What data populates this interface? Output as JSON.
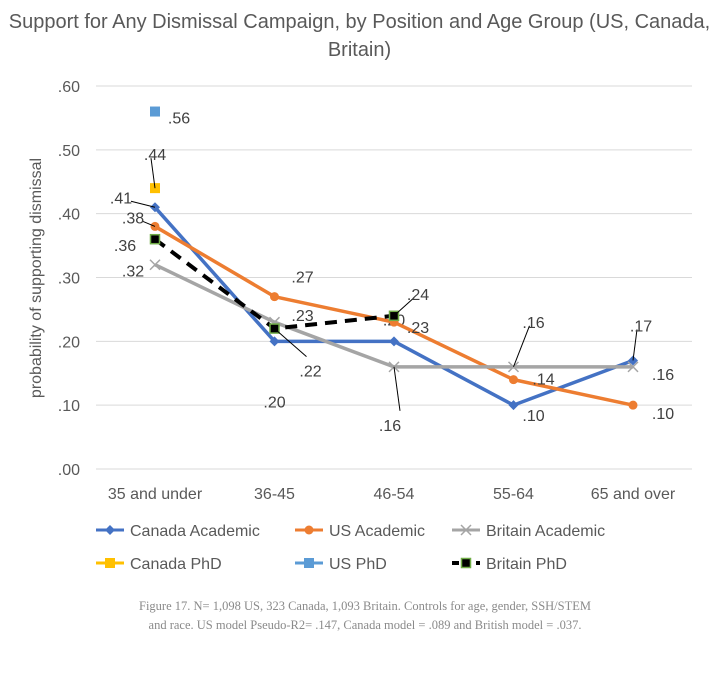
{
  "chart_data": {
    "type": "line",
    "title": "Support for Any Dismissal Campaign, by Position and Age Group (US, Canada, Britain)",
    "xlabel": "",
    "ylabel": "probability of supporting dismissal",
    "categories": [
      "35 and under",
      "36-45",
      "46-54",
      "55-64",
      "65 and over"
    ],
    "yticks": [
      ".00",
      ".10",
      ".20",
      ".30",
      ".40",
      ".50",
      ".60"
    ],
    "ylim": [
      0,
      0.6
    ],
    "grid": true,
    "legend_position": "bottom",
    "series": [
      {
        "name": "Canada Academic",
        "color": "#4472C4",
        "marker": "diamond",
        "dash": false,
        "values": [
          0.41,
          0.2,
          0.2,
          0.1,
          0.17
        ],
        "labels": [
          ".41",
          ".20",
          ".20",
          ".10",
          ".17"
        ]
      },
      {
        "name": "US Academic",
        "color": "#ED7D31",
        "marker": "circle",
        "dash": false,
        "values": [
          0.38,
          0.27,
          0.23,
          0.14,
          0.1
        ],
        "labels": [
          ".38",
          ".27",
          ".23",
          ".14",
          ".10"
        ]
      },
      {
        "name": "Britain Academic",
        "color": "#A5A5A5",
        "marker": "x",
        "dash": false,
        "values": [
          0.32,
          0.23,
          0.16,
          0.16,
          0.16
        ],
        "labels": [
          ".32",
          ".23",
          ".16",
          ".16",
          ".16"
        ]
      },
      {
        "name": "Canada PhD",
        "color": "#FFC000",
        "marker": "square",
        "dash": false,
        "values": [
          0.44,
          null,
          null,
          null,
          null
        ],
        "labels": [
          ".44",
          null,
          null,
          null,
          null
        ]
      },
      {
        "name": "US PhD",
        "color": "#5B9BD5",
        "marker": "square",
        "dash": false,
        "values": [
          0.56,
          null,
          null,
          null,
          null
        ],
        "labels": [
          ".56",
          null,
          null,
          null,
          null
        ]
      },
      {
        "name": "Britain PhD",
        "color": "#000000",
        "marker": "square-green",
        "dash": true,
        "values": [
          0.36,
          0.22,
          0.24,
          null,
          null
        ],
        "labels": [
          ".36",
          ".22",
          ".24",
          null,
          null
        ]
      }
    ]
  },
  "caption": "Figure 17. N= 1,098 US, 323 Canada, 1,093 Britain. Controls for age, gender, SSH/STEM and race. US model Pseudo-R2= .147, Canada model = .089 and British model = .037."
}
